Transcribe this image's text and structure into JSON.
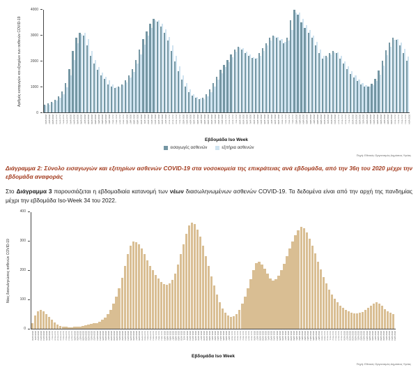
{
  "page": {
    "source_note": "Πηγή: Εθνικός Οργανισμός Δημόσιας Υγείας",
    "caption2": {
      "label": "Διάγραμμα 2:",
      "text": " Σύνολο εισαγωγών και εξιτηρίων ασθενών COVID-19 στα νοσοκομεία της επικράτειας ανά εβδομάδα, από την 36η του 2020 μέχρι την εβδομάδα αναφοράς"
    },
    "para3": {
      "seg1": "Στο ",
      "bold1": "Διάγραμμα 3",
      "seg2": " παρουσιάζεται η εβδομαδιαία κατανομή των ",
      "bold2": "νέων",
      "seg3": " διασωληνωμένων ασθενών COVID-19.  Τα δεδομένα είναι από την αρχή της πανδημίας μέχρι την εβδομάδα Iso-Week 34 του 2022."
    }
  },
  "chart_data": [
    {
      "type": "bar",
      "title": "",
      "xlabel": "Εβδομάδα Iso Week",
      "ylabel": "Αριθμός εισαγωγών και εξιτηρίων των ασθενών COVID-19",
      "ylim": [
        0,
        4000
      ],
      "yticks": [
        0,
        1000,
        2000,
        3000,
        4000
      ],
      "grid": "off",
      "legend_position": "bottom",
      "x_range": {
        "start_year": 2020,
        "start_week": 36,
        "end_year": 2022,
        "end_week": 34
      },
      "weeks_per_year": {
        "2020": 53,
        "2021": 52,
        "2022": 52
      },
      "series": [
        {
          "name": "εισαγωγές ασθενών",
          "color": "#7496a3",
          "values": [
            300,
            360,
            420,
            500,
            620,
            820,
            1150,
            1700,
            2400,
            2900,
            3100,
            3000,
            2600,
            2200,
            1900,
            1650,
            1450,
            1300,
            1100,
            1000,
            950,
            1000,
            1100,
            1250,
            1450,
            1700,
            2050,
            2450,
            2850,
            3150,
            3450,
            3650,
            3550,
            3350,
            3100,
            2800,
            2400,
            2000,
            1600,
            1280,
            1000,
            800,
            650,
            560,
            510,
            560,
            700,
            900,
            1150,
            1400,
            1650,
            1850,
            2050,
            2250,
            2450,
            2550,
            2450,
            2320,
            2200,
            2120,
            2100,
            2300,
            2500,
            2700,
            2900,
            3000,
            2900,
            2800,
            2700,
            2900,
            3600,
            4000,
            3800,
            3500,
            3300,
            3100,
            2900,
            2600,
            2300,
            2100,
            2200,
            2300,
            2400,
            2300,
            2100,
            1900,
            1700,
            1500,
            1350,
            1220,
            1100,
            1020,
            1000,
            1120,
            1320,
            1620,
            2020,
            2420,
            2720,
            2920,
            2820,
            2620,
            2320,
            2020
          ]
        },
        {
          "name": "εξιτήρια ασθενών",
          "color": "#cfe3f0",
          "values": [
            260,
            310,
            380,
            450,
            560,
            720,
            980,
            1450,
            2050,
            2700,
            3050,
            3100,
            2850,
            2400,
            2050,
            1780,
            1550,
            1380,
            1250,
            1080,
            990,
            980,
            1050,
            1180,
            1350,
            1580,
            1900,
            2250,
            2650,
            3000,
            3300,
            3600,
            3600,
            3450,
            3250,
            2950,
            2600,
            2200,
            1800,
            1450,
            1150,
            900,
            720,
            600,
            540,
            530,
            620,
            800,
            1020,
            1280,
            1530,
            1760,
            1960,
            2160,
            2360,
            2520,
            2500,
            2380,
            2260,
            2160,
            2110,
            2200,
            2400,
            2600,
            2800,
            2960,
            2950,
            2850,
            2750,
            2800,
            3200,
            3900,
            3900,
            3650,
            3400,
            3200,
            3000,
            2750,
            2450,
            2200,
            2150,
            2250,
            2350,
            2350,
            2200,
            2000,
            1800,
            1600,
            1430,
            1280,
            1150,
            1060,
            1010,
            1060,
            1220,
            1470,
            1820,
            2220,
            2570,
            2820,
            2870,
            2720,
            2470,
            2170
          ]
        }
      ]
    },
    {
      "type": "bar",
      "title": "",
      "xlabel": "Εβδομάδα Iso Week",
      "ylabel": "Νέες διασωληνώσεις ασθενών COVID-19",
      "ylim": [
        0,
        400
      ],
      "yticks": [
        0,
        100,
        200,
        300,
        400
      ],
      "grid": "off",
      "bar_color": "#d9be93",
      "x_range": {
        "start_year": 2020,
        "start_week": 10,
        "end_year": 2022,
        "end_week": 34
      },
      "weeks_per_year": {
        "2020": 53,
        "2021": 52,
        "2022": 52
      },
      "values": [
        20,
        45,
        60,
        65,
        60,
        50,
        40,
        30,
        22,
        15,
        10,
        8,
        6,
        5,
        5,
        6,
        7,
        8,
        10,
        12,
        14,
        16,
        18,
        20,
        24,
        30,
        38,
        50,
        65,
        85,
        110,
        140,
        175,
        215,
        255,
        285,
        300,
        298,
        290,
        275,
        255,
        235,
        215,
        200,
        185,
        172,
        160,
        152,
        150,
        155,
        168,
        190,
        220,
        255,
        290,
        325,
        355,
        365,
        358,
        340,
        315,
        285,
        250,
        215,
        180,
        148,
        118,
        92,
        70,
        55,
        45,
        40,
        42,
        50,
        65,
        85,
        110,
        140,
        170,
        200,
        225,
        230,
        220,
        205,
        188,
        172,
        165,
        170,
        182,
        200,
        222,
        248,
        275,
        300,
        322,
        338,
        350,
        345,
        330,
        310,
        285,
        258,
        230,
        203,
        178,
        155,
        135,
        118,
        103,
        90,
        80,
        72,
        65,
        60,
        56,
        53,
        52,
        54,
        58,
        64,
        72,
        80,
        87,
        90,
        86,
        78,
        68,
        60,
        54,
        50
      ]
    }
  ]
}
